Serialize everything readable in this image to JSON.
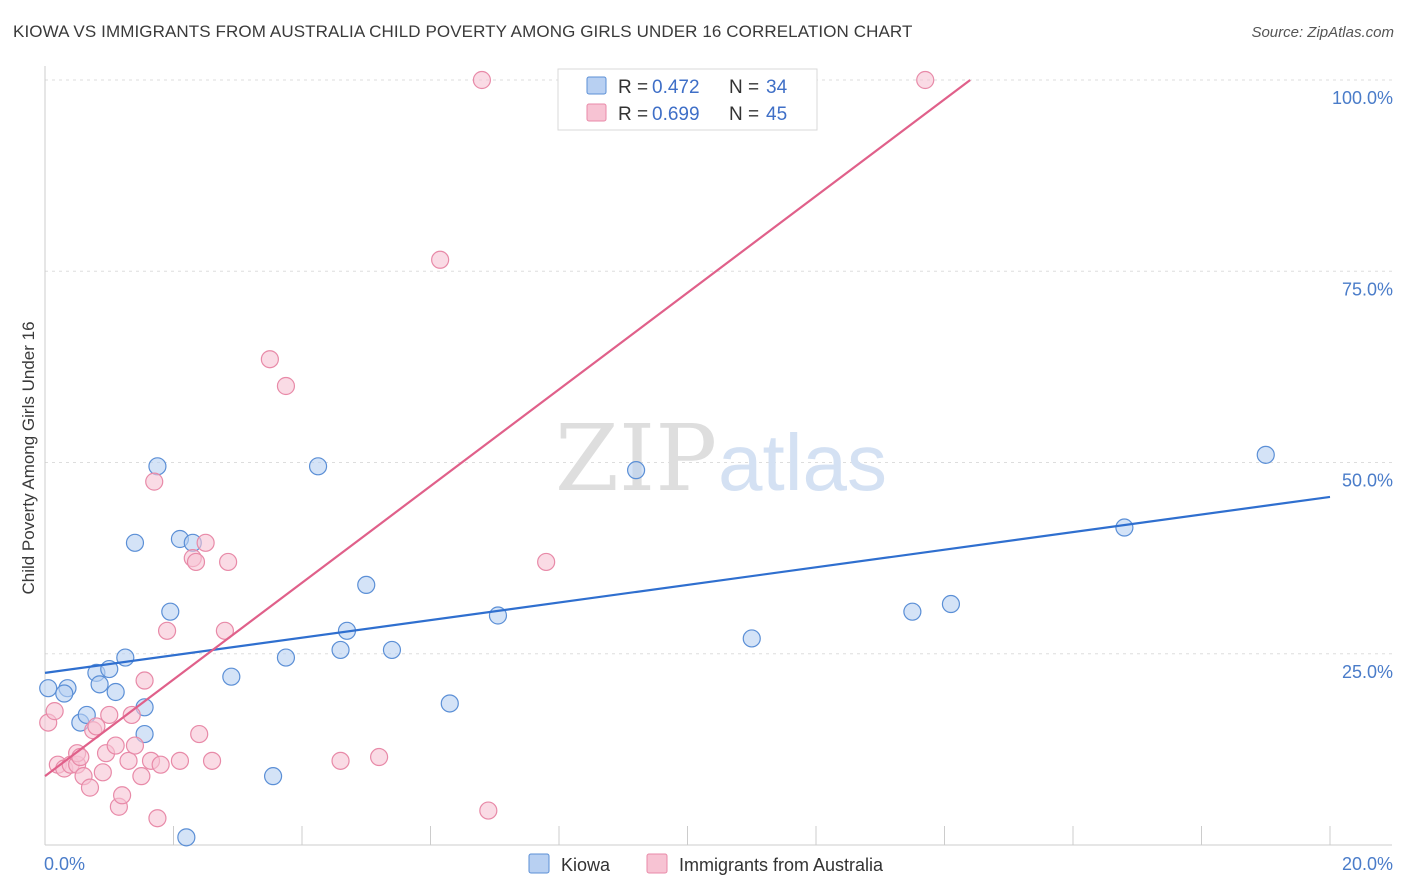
{
  "chart_data": {
    "type": "scatter",
    "title": "KIOWA VS IMMIGRANTS FROM AUSTRALIA CHILD POVERTY AMONG GIRLS UNDER 16 CORRELATION CHART",
    "source": "Source: ZipAtlas.com",
    "watermark": {
      "zip": "ZIP",
      "atlas": "atlas"
    },
    "xlabel": "",
    "ylabel": "Child Poverty Among Girls Under 16",
    "xlim": [
      0,
      20
    ],
    "ylim": [
      0,
      100
    ],
    "x_tick_labels": [
      "0.0%",
      "20.0%"
    ],
    "y_ticks": [
      25,
      50,
      75,
      100
    ],
    "y_tick_labels": [
      "25.0%",
      "50.0%",
      "75.0%",
      "100.0%"
    ],
    "grid": true,
    "legend_position": "top-center",
    "legend": [
      {
        "r_label": "R =",
        "r_value": "0.472",
        "n_label": "N =",
        "n_value": "34"
      },
      {
        "r_label": "R =",
        "r_value": "0.699",
        "n_label": "N =",
        "n_value": "45"
      }
    ],
    "series": [
      {
        "name": "Kiowa",
        "color": "#5b8fd6",
        "fill": "#b8d0f2",
        "trend": {
          "x": [
            0,
            20
          ],
          "y": [
            22.5,
            45.5
          ],
          "color": "#2f6fcf"
        },
        "points": [
          [
            0.05,
            20.5
          ],
          [
            0.35,
            20.5
          ],
          [
            0.3,
            19.8
          ],
          [
            0.55,
            16
          ],
          [
            0.65,
            17
          ],
          [
            0.8,
            22.5
          ],
          [
            0.85,
            21
          ],
          [
            1.0,
            23
          ],
          [
            1.1,
            20
          ],
          [
            1.25,
            24.5
          ],
          [
            1.4,
            39.5
          ],
          [
            1.55,
            14.5
          ],
          [
            1.55,
            18
          ],
          [
            1.75,
            49.5
          ],
          [
            1.95,
            30.5
          ],
          [
            2.1,
            40
          ],
          [
            2.3,
            39.5
          ],
          [
            2.2,
            1
          ],
          [
            2.9,
            22
          ],
          [
            3.55,
            9
          ],
          [
            3.75,
            24.5
          ],
          [
            4.25,
            49.5
          ],
          [
            4.6,
            25.5
          ],
          [
            4.7,
            28
          ],
          [
            5.0,
            34
          ],
          [
            5.4,
            25.5
          ],
          [
            6.3,
            18.5
          ],
          [
            7.05,
            30
          ],
          [
            9.2,
            49
          ],
          [
            11.0,
            27
          ],
          [
            13.5,
            30.5
          ],
          [
            14.1,
            31.5
          ],
          [
            16.8,
            41.5
          ],
          [
            19.0,
            51
          ]
        ]
      },
      {
        "name": "Immigrants from Australia",
        "color": "#e88aa8",
        "fill": "#f7c3d3",
        "trend": {
          "x": [
            0,
            14.4
          ],
          "y": [
            9,
            100
          ],
          "color": "#e0608a"
        },
        "points": [
          [
            0.05,
            16
          ],
          [
            0.15,
            17.5
          ],
          [
            0.2,
            10.5
          ],
          [
            0.3,
            10
          ],
          [
            0.4,
            10.5
          ],
          [
            0.5,
            10.5
          ],
          [
            0.5,
            12
          ],
          [
            0.55,
            11.5
          ],
          [
            0.6,
            9
          ],
          [
            0.7,
            7.5
          ],
          [
            0.75,
            15
          ],
          [
            0.8,
            15.5
          ],
          [
            0.9,
            9.5
          ],
          [
            0.95,
            12
          ],
          [
            1.0,
            17
          ],
          [
            1.1,
            13
          ],
          [
            1.15,
            5
          ],
          [
            1.2,
            6.5
          ],
          [
            1.3,
            11
          ],
          [
            1.35,
            17
          ],
          [
            1.4,
            13
          ],
          [
            1.5,
            9
          ],
          [
            1.55,
            21.5
          ],
          [
            1.65,
            11
          ],
          [
            1.7,
            47.5
          ],
          [
            1.75,
            3.5
          ],
          [
            1.8,
            10.5
          ],
          [
            1.9,
            28
          ],
          [
            2.1,
            11
          ],
          [
            2.3,
            37.5
          ],
          [
            2.35,
            37
          ],
          [
            2.4,
            14.5
          ],
          [
            2.5,
            39.5
          ],
          [
            2.6,
            11
          ],
          [
            2.8,
            28
          ],
          [
            2.85,
            37
          ],
          [
            3.5,
            63.5
          ],
          [
            3.75,
            60
          ],
          [
            4.6,
            11
          ],
          [
            5.2,
            11.5
          ],
          [
            6.15,
            76.5
          ],
          [
            6.8,
            100
          ],
          [
            6.9,
            4.5
          ],
          [
            7.8,
            37
          ],
          [
            13.7,
            100
          ]
        ]
      }
    ]
  }
}
